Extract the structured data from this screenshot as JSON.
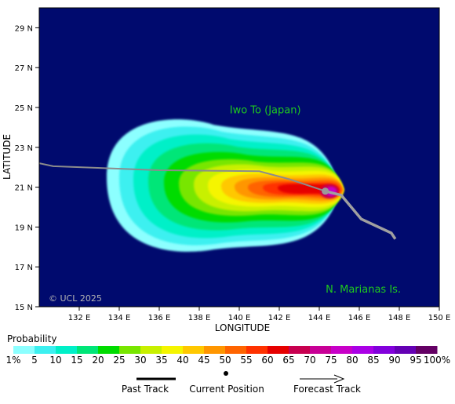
{
  "map": {
    "ocean_color": "#000a6e",
    "land_label_color": "#1ec81e",
    "copyright": "© UCL 2025",
    "labels": [
      {
        "text": "Iwo To (Japan)",
        "lon": 141.3,
        "lat": 24.7
      },
      {
        "text": "N. Marianas Is.",
        "lon": 146.2,
        "lat": 15.7
      }
    ],
    "axes": {
      "xlabel": "LONGITUDE",
      "ylabel": "LATITUDE",
      "lon_range": [
        130,
        150
      ],
      "lat_range": [
        15,
        30
      ],
      "lon_ticks": [
        "132 E",
        "134 E",
        "136 E",
        "138 E",
        "140 E",
        "142 E",
        "144 E",
        "146 E",
        "148 E",
        "150 E"
      ],
      "lat_ticks": [
        "29 N",
        "27 N",
        "25 N",
        "23 N",
        "21 N",
        "19 N",
        "17 N",
        "15 N"
      ]
    },
    "past_track": [
      [
        130.0,
        22.2
      ],
      [
        130.7,
        22.05
      ],
      [
        136.0,
        21.85
      ],
      [
        141.0,
        21.8
      ],
      [
        142.5,
        21.4
      ],
      [
        144.3,
        20.8
      ]
    ],
    "forecast_track": [
      [
        144.3,
        20.8
      ],
      [
        145.1,
        20.6
      ],
      [
        146.1,
        19.4
      ],
      [
        147.6,
        18.7
      ],
      [
        147.8,
        18.4
      ]
    ],
    "current_position": {
      "lon": 144.3,
      "lat": 20.8
    }
  },
  "legend": {
    "title": "Probability",
    "ticks": [
      "1%",
      "5",
      "10",
      "15",
      "20",
      "25",
      "30",
      "35",
      "40",
      "45",
      "50",
      "55",
      "60",
      "65",
      "70",
      "75",
      "80",
      "85",
      "90",
      "95",
      "100%"
    ],
    "colors": [
      "#8cffff",
      "#3cf0f0",
      "#00f0c8",
      "#00e678",
      "#00dc00",
      "#78e600",
      "#c8f000",
      "#f5f500",
      "#ffc800",
      "#ff9600",
      "#ff6400",
      "#ff3200",
      "#e60000",
      "#c80050",
      "#c80096",
      "#c800c8",
      "#aa00e6",
      "#8200dc",
      "#6400b4",
      "#640064"
    ],
    "past_track_label": "Past Track",
    "current_position_label": "Current Position",
    "forecast_track_label": "Forecast Track"
  }
}
